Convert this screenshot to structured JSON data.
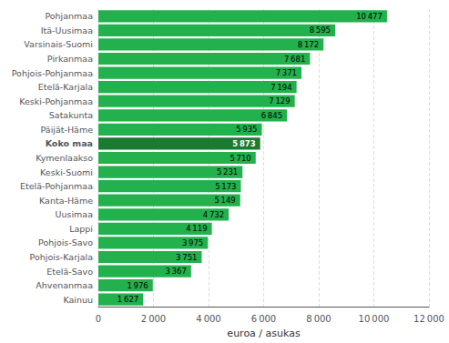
{
  "chart_data": {
    "type": "bar",
    "orientation": "horizontal",
    "categories": [
      "Kainuu",
      "Ahvenanmaa",
      "Etelä-Savo",
      "Pohjois-Karjala",
      "Pohjois-Savo",
      "Lappi",
      "Uusimaa",
      "Kanta-Häme",
      "Etelä-Pohjanmaa",
      "Keski-Suomi",
      "Kymenlaakso",
      "Koko maa",
      "Päijät-Häme",
      "Satakunta",
      "Keski-Pohjanmaa",
      "Etelä-Karjala",
      "Pohjois-Pohjanmaa",
      "Pirkanmaa",
      "Varsinais-Suomi",
      "Itä-Uusimaa",
      "Pohjanmaa"
    ],
    "values": [
      1627,
      1976,
      3367,
      3751,
      3975,
      4119,
      4732,
      5149,
      5173,
      5231,
      5710,
      5873,
      5935,
      6845,
      7129,
      7194,
      7371,
      7681,
      8172,
      8595,
      10477
    ],
    "value_labels": [
      "1 627",
      "1 976",
      "3 367",
      "3 751",
      "3 975",
      "4 119",
      "4 732",
      "5 149",
      "5 173",
      "5 231",
      "5 710",
      "5 873",
      "5 935",
      "6 845",
      "7 129",
      "7 194",
      "7 371",
      "7 681",
      "8 172",
      "8 595",
      "10 477"
    ],
    "colors": [
      "#22b14c",
      "#22b14c",
      "#22b14c",
      "#22b14c",
      "#22b14c",
      "#22b14c",
      "#22b14c",
      "#22b14c",
      "#22b14c",
      "#22b14c",
      "#22b14c",
      "#1a7a30",
      "#22b14c",
      "#22b14c",
      "#22b14c",
      "#22b14c",
      "#22b14c",
      "#22b14c",
      "#22b14c",
      "#22b14c",
      "#22b14c"
    ],
    "xlabel": "euroa / asukas",
    "xlim": [
      0,
      12000
    ],
    "xticks": [
      0,
      {
        "value": 2000,
        "label": "2 000"
      },
      {
        "value": 4000,
        "label": "4 000"
      },
      {
        "value": 6000,
        "label": "6 000"
      },
      {
        "value": 8000,
        "label": "8 000"
      },
      {
        "value": 10000,
        "label": "10 000"
      },
      {
        "value": 12000,
        "label": "12 000"
      }
    ],
    "grid": true,
    "data_labels": true
  }
}
